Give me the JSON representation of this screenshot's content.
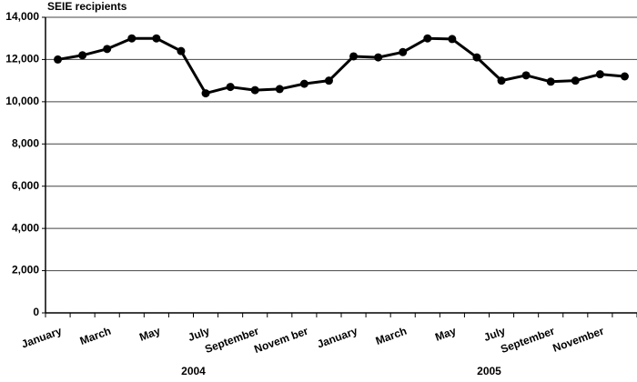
{
  "chart_data": {
    "type": "line",
    "title": "SEIE recipients",
    "categories": [
      "January",
      null,
      "March",
      null,
      "May",
      null,
      "July",
      null,
      "September",
      null,
      "Novem ber",
      null,
      "January",
      null,
      "March",
      null,
      "May",
      null,
      "July",
      null,
      "September",
      null,
      "November",
      null
    ],
    "groups": [
      "2004",
      "2005"
    ],
    "values": [
      12000,
      12200,
      12500,
      13000,
      13000,
      12400,
      10400,
      10700,
      10550,
      10600,
      10850,
      11000,
      12150,
      12100,
      12350,
      13000,
      12970,
      12100,
      11000,
      11250,
      10950,
      11000,
      11300,
      11200
    ],
    "color": "#000000",
    "ylim": [
      0,
      14000
    ],
    "yticks": [
      0,
      {
        "value": 2000,
        "label": "2,000"
      },
      {
        "value": 4000,
        "label": "4,000"
      },
      {
        "value": 6000,
        "label": "6,000"
      },
      {
        "value": 8000,
        "label": "8,000"
      },
      {
        "value": 10000,
        "label": "10,000"
      },
      {
        "value": 12000,
        "label": "12,000"
      },
      {
        "value": 14000,
        "label": "14,000"
      }
    ],
    "grid": true
  }
}
